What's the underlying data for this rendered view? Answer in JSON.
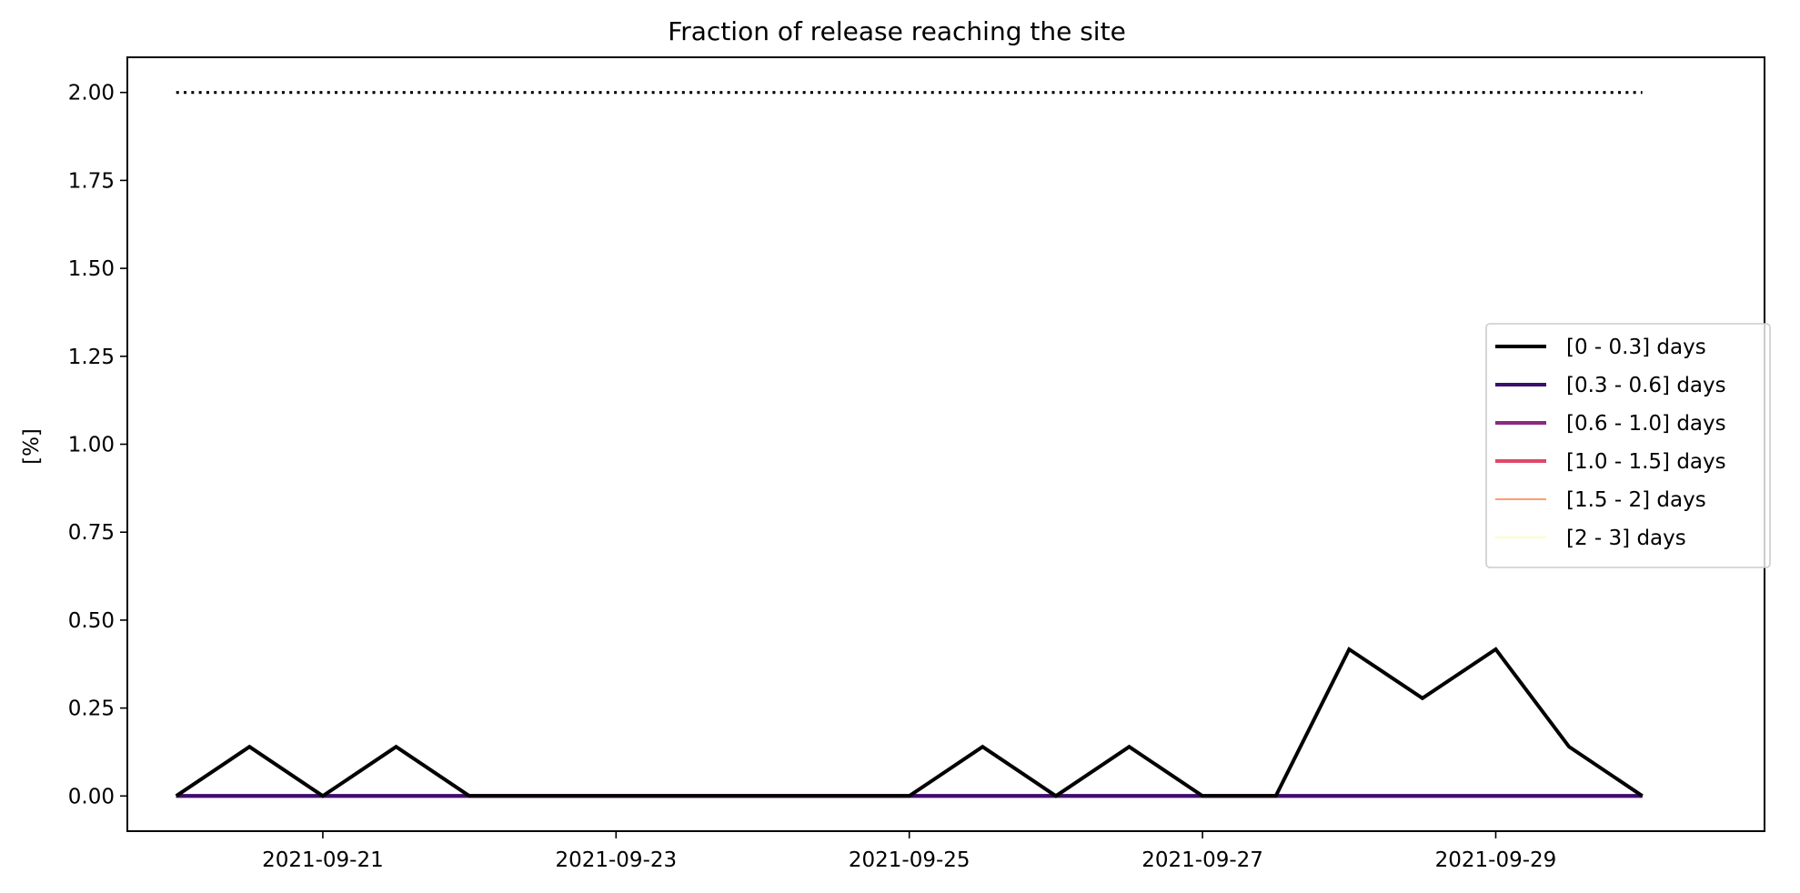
{
  "chart_data": {
    "type": "line",
    "title": "Fraction of release reaching the site",
    "xlabel": "",
    "ylabel": "[%]",
    "x_type": "datetime",
    "xlim": [
      "2021-09-19T16:00",
      "2021-09-30T20:00"
    ],
    "ylim": [
      -0.1,
      2.1
    ],
    "xticks": [
      "2021-09-21",
      "2021-09-23",
      "2021-09-25",
      "2021-09-27",
      "2021-09-29"
    ],
    "yticks": [
      "0.00",
      "0.25",
      "0.50",
      "0.75",
      "1.00",
      "1.25",
      "1.50",
      "1.75",
      "2.00"
    ],
    "grid": false,
    "legend_position": "center-right",
    "x": [
      "2021-09-20T00:00",
      "2021-09-20T12:00",
      "2021-09-21T00:00",
      "2021-09-21T12:00",
      "2021-09-22T00:00",
      "2021-09-22T12:00",
      "2021-09-23T00:00",
      "2021-09-23T12:00",
      "2021-09-24T00:00",
      "2021-09-24T12:00",
      "2021-09-25T00:00",
      "2021-09-25T12:00",
      "2021-09-26T00:00",
      "2021-09-26T12:00",
      "2021-09-27T00:00",
      "2021-09-27T12:00",
      "2021-09-28T00:00",
      "2021-09-28T12:00",
      "2021-09-29T00:00",
      "2021-09-29T12:00",
      "2021-09-30T00:00"
    ],
    "series": [
      {
        "name": "[0 - 0.3] days",
        "color": "#000000",
        "width": 4,
        "values": [
          0,
          0.14,
          0,
          0.14,
          0,
          0,
          0,
          0,
          0,
          0,
          0,
          0.14,
          0,
          0.14,
          0,
          0,
          0.417,
          0.278,
          0.417,
          0.14,
          0
        ]
      },
      {
        "name": "[0.3 - 0.6] days",
        "color": "#3b0f70",
        "width": 4,
        "values": [
          0,
          0,
          0,
          0,
          0,
          0,
          0,
          0,
          0,
          0,
          0,
          0,
          0,
          0,
          0,
          0,
          0,
          0,
          0,
          0,
          0
        ]
      },
      {
        "name": "[0.6 - 1.0] days",
        "color": "#8c2981",
        "width": 4,
        "values": [
          0,
          0,
          0,
          0,
          0,
          0,
          0,
          0,
          0,
          0,
          0,
          0,
          0,
          0,
          0,
          0,
          0,
          0,
          0,
          0,
          0
        ]
      },
      {
        "name": "[1.0 - 1.5] days",
        "color": "#de4968",
        "width": 4,
        "values": [
          0,
          0,
          0,
          0,
          0,
          0,
          0,
          0,
          0,
          0,
          0,
          0,
          0,
          0,
          0,
          0,
          0,
          0,
          0,
          0,
          0
        ]
      },
      {
        "name": "[1.5 - 2] days",
        "color": "#fe9f6d",
        "width": 2,
        "values": [
          0,
          0,
          0,
          0,
          0,
          0,
          0,
          0,
          0,
          0,
          0,
          0,
          0,
          0,
          0,
          0,
          0,
          0,
          0,
          0,
          0
        ]
      },
      {
        "name": "[2 - 3] days",
        "color": "#fcfdbf",
        "width": 2,
        "values": [
          0,
          0,
          0,
          0,
          0,
          0,
          0,
          0,
          0,
          0,
          0,
          0,
          0,
          0,
          0,
          0,
          0,
          0,
          0,
          0,
          0
        ]
      }
    ],
    "reference_line": {
      "y": 2.0,
      "style": "dotted",
      "color": "#000000",
      "x_start": "2021-09-20T00:00",
      "x_end": "2021-09-30T00:00"
    }
  }
}
